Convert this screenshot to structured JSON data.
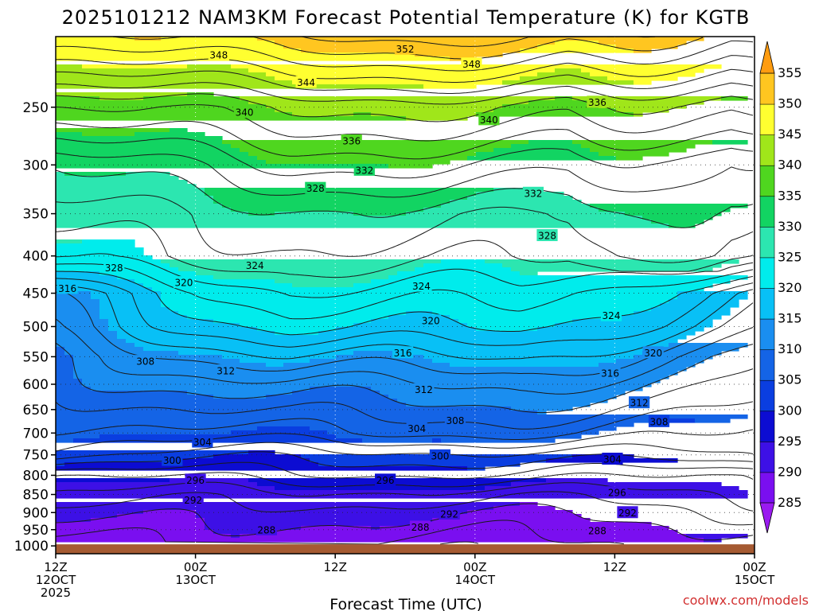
{
  "chart_data": {
    "type": "heatmap",
    "title": "2025101212 NAM3KM Forecast Potential Temperature (K) for KGTB",
    "xlabel": "Forecast Time (UTC)",
    "ylabel": "",
    "x_ticks": [
      {
        "hour": 0,
        "lines": [
          "12Z",
          "12OCT",
          "2025"
        ]
      },
      {
        "hour": 12,
        "lines": [
          "00Z",
          "13OCT"
        ]
      },
      {
        "hour": 24,
        "lines": [
          "12Z"
        ]
      },
      {
        "hour": 36,
        "lines": [
          "00Z",
          "14OCT"
        ]
      },
      {
        "hour": 48,
        "lines": [
          "12Z"
        ]
      },
      {
        "hour": 60,
        "lines": [
          "00Z",
          "15OCT"
        ]
      }
    ],
    "xlim": [
      0,
      60
    ],
    "y_ticks": [
      250,
      300,
      350,
      400,
      450,
      500,
      550,
      600,
      650,
      700,
      750,
      800,
      850,
      900,
      950,
      1000
    ],
    "ylim": [
      1025,
      200
    ],
    "y_scale": "log-pressure (hPa)",
    "colorbar": {
      "labels": [
        285,
        290,
        295,
        300,
        305,
        310,
        315,
        320,
        325,
        330,
        335,
        340,
        345,
        350,
        355
      ],
      "colors": [
        "#9a1bf0",
        "#7a0ff0",
        "#3d10e6",
        "#0c0cd2",
        "#0a3ee0",
        "#1464e6",
        "#1a8ef0",
        "#08c0f6",
        "#00ecec",
        "#2ce6b0",
        "#12d462",
        "#4fd61f",
        "#a0e61a",
        "#ffff30",
        "#ffc620",
        "#ff9c10"
      ],
      "bin_edges": [
        280,
        285,
        290,
        295,
        300,
        305,
        310,
        315,
        320,
        325,
        330,
        335,
        340,
        345,
        350,
        355,
        360
      ]
    },
    "profile": {
      "pressure_hPa": [
        200,
        250,
        300,
        350,
        400,
        450,
        500,
        550,
        600,
        650,
        700,
        750,
        800,
        850,
        900,
        950,
        1000
      ],
      "theta_K_at_start": [
        349,
        338,
        330.5,
        327.5,
        325,
        315,
        313,
        309.5,
        308,
        306,
        304.5,
        302.5,
        296,
        294,
        292,
        289.5,
        287.5
      ],
      "theta_K_midrun": [
        352,
        340,
        334,
        329,
        327,
        323.5,
        320.5,
        316,
        312,
        309,
        306,
        301,
        297.5,
        293,
        290.5,
        289,
        287.5
      ]
    },
    "contour_interval_K": 2,
    "contour_labels": [
      {
        "value": 348,
        "hour": 14,
        "p": 212
      },
      {
        "value": 352,
        "hour": 30,
        "p": 208
      },
      {
        "value": 348,
        "hour": 35.7,
        "p": 218
      },
      {
        "value": 344,
        "hour": 21.5,
        "p": 231
      },
      {
        "value": 340,
        "hour": 16.2,
        "p": 254
      },
      {
        "value": 340,
        "hour": 37.2,
        "p": 260
      },
      {
        "value": 336,
        "hour": 46.5,
        "p": 246
      },
      {
        "value": 336,
        "hour": 25.4,
        "p": 278
      },
      {
        "value": 332,
        "hour": 26.5,
        "p": 305
      },
      {
        "value": 332,
        "hour": 41,
        "p": 328
      },
      {
        "value": 328,
        "hour": 22.3,
        "p": 323
      },
      {
        "value": 328,
        "hour": 42.2,
        "p": 375
      },
      {
        "value": 328,
        "hour": 5,
        "p": 415
      },
      {
        "value": 324,
        "hour": 17.1,
        "p": 412
      },
      {
        "value": 324,
        "hour": 31.4,
        "p": 440
      },
      {
        "value": 324,
        "hour": 47.7,
        "p": 483
      },
      {
        "value": 320,
        "hour": 11,
        "p": 435
      },
      {
        "value": 320,
        "hour": 32.2,
        "p": 491
      },
      {
        "value": 320,
        "hour": 51.3,
        "p": 543
      },
      {
        "value": 316,
        "hour": 1,
        "p": 443
      },
      {
        "value": 316,
        "hour": 29.8,
        "p": 543
      },
      {
        "value": 316,
        "hour": 47.6,
        "p": 579
      },
      {
        "value": 312,
        "hour": 14.6,
        "p": 575
      },
      {
        "value": 312,
        "hour": 31.6,
        "p": 610
      },
      {
        "value": 312,
        "hour": 50.1,
        "p": 636
      },
      {
        "value": 308,
        "hour": 7.7,
        "p": 558
      },
      {
        "value": 308,
        "hour": 34.3,
        "p": 673
      },
      {
        "value": 308,
        "hour": 51.8,
        "p": 675
      },
      {
        "value": 304,
        "hour": 12.6,
        "p": 720
      },
      {
        "value": 304,
        "hour": 31,
        "p": 690
      },
      {
        "value": 304,
        "hour": 47.8,
        "p": 760
      },
      {
        "value": 300,
        "hour": 10,
        "p": 763
      },
      {
        "value": 300,
        "hour": 33,
        "p": 752
      },
      {
        "value": 296,
        "hour": 12,
        "p": 812
      },
      {
        "value": 296,
        "hour": 28.3,
        "p": 812
      },
      {
        "value": 296,
        "hour": 48.2,
        "p": 845
      },
      {
        "value": 292,
        "hour": 11.8,
        "p": 865
      },
      {
        "value": 292,
        "hour": 33.8,
        "p": 904
      },
      {
        "value": 292,
        "hour": 49.1,
        "p": 900
      },
      {
        "value": 288,
        "hour": 18.1,
        "p": 950
      },
      {
        "value": 288,
        "hour": 31.3,
        "p": 942
      },
      {
        "value": 288,
        "hour": 46.5,
        "p": 953
      }
    ]
  },
  "credit": "coolwx.com/models"
}
